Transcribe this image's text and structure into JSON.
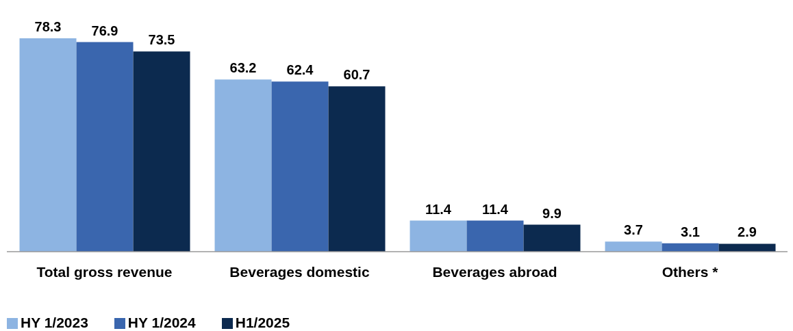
{
  "chart_data": {
    "type": "bar",
    "categories": [
      "Total gross revenue",
      "Beverages domestic",
      "Beverages abroad",
      "Others *"
    ],
    "series": [
      {
        "name": "HY 1/2023",
        "color": "#8db4e2",
        "values": [
          78.3,
          63.2,
          11.4,
          3.7
        ]
      },
      {
        "name": "HY 1/2024",
        "color": "#3a66ae",
        "values": [
          76.9,
          62.4,
          11.4,
          3.1
        ]
      },
      {
        "name": "H1/2025",
        "color": "#0c2a4f",
        "values": [
          73.5,
          60.7,
          9.9,
          2.9
        ]
      }
    ],
    "data_labels": true,
    "legend": "bottom left",
    "grid": false
  }
}
